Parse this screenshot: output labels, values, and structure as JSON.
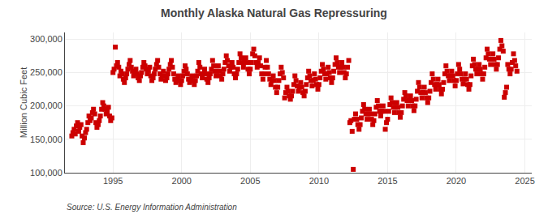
{
  "chart_data": {
    "type": "scatter",
    "title": "Monthly Alaska Natural Gas Repressuring",
    "ylabel": "Million Cubic Feet",
    "annotations": [
      "Source: U.S. Energy Information Administration"
    ],
    "color": "#cc0000",
    "marker": "square",
    "grid": true,
    "xlim": [
      1991.5,
      2025.5
    ],
    "xticks": [
      1995,
      2000,
      2005,
      2010,
      2015,
      2020,
      2025
    ],
    "ylim": [
      100000,
      310000
    ],
    "yticks": [
      {
        "value": 100000,
        "label": "100,000"
      },
      {
        "value": 150000,
        "label": "150,000"
      },
      {
        "value": 200000,
        "label": "200,000"
      },
      {
        "value": 250000,
        "label": "250,000"
      },
      {
        "value": 300000,
        "label": "300,000"
      }
    ],
    "x": [
      1992.0,
      1992.08,
      1992.17,
      1992.25,
      1992.33,
      1992.42,
      1992.5,
      1992.58,
      1992.67,
      1992.75,
      1992.83,
      1992.92,
      1993.0,
      1993.08,
      1993.17,
      1993.25,
      1993.33,
      1993.42,
      1993.5,
      1993.58,
      1993.67,
      1993.75,
      1993.83,
      1993.92,
      1994.0,
      1994.08,
      1994.17,
      1994.25,
      1994.33,
      1994.42,
      1994.5,
      1994.58,
      1994.67,
      1994.75,
      1994.83,
      1994.92,
      1995.0,
      1995.08,
      1995.17,
      1995.25,
      1995.33,
      1995.42,
      1995.5,
      1995.58,
      1995.67,
      1995.75,
      1995.83,
      1995.92,
      1996.0,
      1996.08,
      1996.17,
      1996.25,
      1996.33,
      1996.42,
      1996.5,
      1996.58,
      1996.67,
      1996.75,
      1996.83,
      1996.92,
      1997.0,
      1997.08,
      1997.17,
      1997.25,
      1997.33,
      1997.42,
      1997.5,
      1997.58,
      1997.67,
      1997.75,
      1997.83,
      1997.92,
      1998.0,
      1998.08,
      1998.17,
      1998.25,
      1998.33,
      1998.42,
      1998.5,
      1998.58,
      1998.67,
      1998.75,
      1998.83,
      1998.92,
      1999.0,
      1999.08,
      1999.17,
      1999.25,
      1999.33,
      1999.42,
      1999.5,
      1999.58,
      1999.67,
      1999.75,
      1999.83,
      1999.92,
      2000.0,
      2000.08,
      2000.17,
      2000.25,
      2000.33,
      2000.42,
      2000.5,
      2000.58,
      2000.67,
      2000.75,
      2000.83,
      2000.92,
      2001.0,
      2001.08,
      2001.17,
      2001.25,
      2001.33,
      2001.42,
      2001.5,
      2001.58,
      2001.67,
      2001.75,
      2001.83,
      2001.92,
      2002.0,
      2002.08,
      2002.17,
      2002.25,
      2002.33,
      2002.42,
      2002.5,
      2002.58,
      2002.67,
      2002.75,
      2002.83,
      2002.92,
      2003.0,
      2003.08,
      2003.17,
      2003.25,
      2003.33,
      2003.42,
      2003.5,
      2003.58,
      2003.67,
      2003.75,
      2003.83,
      2003.92,
      2004.0,
      2004.08,
      2004.17,
      2004.25,
      2004.33,
      2004.42,
      2004.5,
      2004.58,
      2004.67,
      2004.75,
      2004.83,
      2004.92,
      2005.0,
      2005.08,
      2005.17,
      2005.25,
      2005.33,
      2005.42,
      2005.5,
      2005.58,
      2005.67,
      2005.75,
      2005.83,
      2005.92,
      2006.0,
      2006.08,
      2006.17,
      2006.25,
      2006.33,
      2006.42,
      2006.5,
      2006.58,
      2006.67,
      2006.75,
      2006.83,
      2006.92,
      2007.0,
      2007.08,
      2007.17,
      2007.25,
      2007.33,
      2007.42,
      2007.5,
      2007.58,
      2007.67,
      2007.75,
      2007.83,
      2007.92,
      2008.0,
      2008.08,
      2008.17,
      2008.25,
      2008.33,
      2008.42,
      2008.5,
      2008.58,
      2008.67,
      2008.75,
      2008.83,
      2008.92,
      2009.0,
      2009.08,
      2009.17,
      2009.25,
      2009.33,
      2009.42,
      2009.5,
      2009.58,
      2009.67,
      2009.75,
      2009.83,
      2009.92,
      2010.0,
      2010.08,
      2010.17,
      2010.25,
      2010.33,
      2010.42,
      2010.5,
      2010.58,
      2010.67,
      2010.75,
      2010.83,
      2010.92,
      2011.0,
      2011.08,
      2011.17,
      2011.25,
      2011.33,
      2011.42,
      2011.5,
      2011.58,
      2011.67,
      2011.75,
      2011.83,
      2011.92,
      2012.0,
      2012.08,
      2012.17,
      2012.25,
      2012.33,
      2012.42,
      2012.5,
      2012.58,
      2012.67,
      2012.75,
      2012.83,
      2012.92,
      2013.0,
      2013.08,
      2013.17,
      2013.25,
      2013.33,
      2013.42,
      2013.5,
      2013.58,
      2013.67,
      2013.75,
      2013.83,
      2013.92,
      2014.0,
      2014.08,
      2014.17,
      2014.25,
      2014.33,
      2014.42,
      2014.5,
      2014.58,
      2014.67,
      2014.75,
      2014.83,
      2014.92,
      2015.0,
      2015.08,
      2015.17,
      2015.25,
      2015.33,
      2015.42,
      2015.5,
      2015.58,
      2015.67,
      2015.75,
      2015.83,
      2015.92,
      2016.0,
      2016.08,
      2016.17,
      2016.25,
      2016.33,
      2016.42,
      2016.5,
      2016.58,
      2016.67,
      2016.75,
      2016.83,
      2016.92,
      2017.0,
      2017.08,
      2017.17,
      2017.25,
      2017.33,
      2017.42,
      2017.5,
      2017.58,
      2017.67,
      2017.75,
      2017.83,
      2017.92,
      2018.0,
      2018.08,
      2018.17,
      2018.25,
      2018.33,
      2018.42,
      2018.5,
      2018.58,
      2018.67,
      2018.75,
      2018.83,
      2018.92,
      2019.0,
      2019.08,
      2019.17,
      2019.25,
      2019.33,
      2019.42,
      2019.5,
      2019.58,
      2019.67,
      2019.75,
      2019.83,
      2019.92,
      2020.0,
      2020.08,
      2020.17,
      2020.25,
      2020.33,
      2020.42,
      2020.5,
      2020.58,
      2020.67,
      2020.75,
      2020.83,
      2020.92,
      2021.0,
      2021.08,
      2021.17,
      2021.25,
      2021.33,
      2021.42,
      2021.5,
      2021.58,
      2021.67,
      2021.75,
      2021.83,
      2021.92,
      2022.0,
      2022.08,
      2022.17,
      2022.25,
      2022.33,
      2022.42,
      2022.5,
      2022.58,
      2022.67,
      2022.75,
      2022.83,
      2022.92,
      2023.0,
      2023.08,
      2023.17,
      2023.25,
      2023.33,
      2023.42,
      2023.5,
      2023.58,
      2023.67,
      2023.75,
      2023.83,
      2023.92,
      2024.0,
      2024.08,
      2024.17,
      2024.25,
      2024.33,
      2024.42
    ],
    "values": [
      155000,
      160000,
      165000,
      158000,
      170000,
      175000,
      162000,
      168000,
      172000,
      155000,
      145000,
      152000,
      160000,
      165000,
      175000,
      185000,
      178000,
      182000,
      190000,
      195000,
      188000,
      175000,
      168000,
      172000,
      178000,
      185000,
      195000,
      205000,
      200000,
      195000,
      188000,
      192000,
      198000,
      185000,
      178000,
      182000,
      250000,
      255000,
      288000,
      260000,
      265000,
      258000,
      245000,
      252000,
      248000,
      240000,
      235000,
      242000,
      248000,
      255000,
      262000,
      268000,
      258000,
      252000,
      245000,
      250000,
      255000,
      248000,
      242000,
      238000,
      245000,
      250000,
      258000,
      265000,
      260000,
      255000,
      248000,
      252000,
      258000,
      245000,
      238000,
      242000,
      248000,
      255000,
      262000,
      268000,
      258000,
      248000,
      240000,
      245000,
      252000,
      245000,
      238000,
      242000,
      248000,
      255000,
      262000,
      268000,
      258000,
      248000,
      240000,
      235000,
      240000,
      245000,
      238000,
      232000,
      238000,
      245000,
      252000,
      260000,
      255000,
      248000,
      240000,
      235000,
      240000,
      245000,
      238000,
      232000,
      238000,
      245000,
      252000,
      265000,
      258000,
      248000,
      242000,
      248000,
      255000,
      248000,
      240000,
      235000,
      242000,
      248000,
      255000,
      268000,
      260000,
      252000,
      245000,
      252000,
      260000,
      252000,
      245000,
      240000,
      248000,
      255000,
      265000,
      275000,
      268000,
      260000,
      252000,
      258000,
      265000,
      258000,
      248000,
      242000,
      248000,
      255000,
      265000,
      278000,
      272000,
      265000,
      258000,
      265000,
      272000,
      265000,
      255000,
      248000,
      255000,
      265000,
      278000,
      285000,
      275000,
      265000,
      258000,
      265000,
      272000,
      260000,
      248000,
      240000,
      248000,
      258000,
      268000,
      258000,
      248000,
      240000,
      232000,
      238000,
      245000,
      238000,
      228000,
      220000,
      228000,
      238000,
      248000,
      258000,
      250000,
      242000,
      212000,
      220000,
      228000,
      222000,
      215000,
      210000,
      215000,
      222000,
      232000,
      245000,
      238000,
      230000,
      222000,
      228000,
      235000,
      228000,
      220000,
      215000,
      222000,
      232000,
      242000,
      252000,
      245000,
      238000,
      230000,
      238000,
      248000,
      240000,
      232000,
      225000,
      232000,
      242000,
      252000,
      262000,
      255000,
      248000,
      240000,
      248000,
      258000,
      250000,
      242000,
      235000,
      242000,
      252000,
      262000,
      272000,
      265000,
      258000,
      250000,
      258000,
      265000,
      258000,
      250000,
      242000,
      248000,
      258000,
      268000,
      175000,
      178000,
      162000,
      105000,
      180000,
      188000,
      180000,
      172000,
      165000,
      172000,
      182000,
      192000,
      202000,
      195000,
      188000,
      180000,
      188000,
      195000,
      188000,
      180000,
      172000,
      178000,
      188000,
      198000,
      208000,
      200000,
      192000,
      185000,
      192000,
      200000,
      192000,
      165000,
      175000,
      180000,
      192000,
      202000,
      212000,
      205000,
      198000,
      190000,
      198000,
      205000,
      198000,
      190000,
      183000,
      190000,
      200000,
      210000,
      220000,
      215000,
      208000,
      200000,
      208000,
      215000,
      208000,
      200000,
      193000,
      200000,
      210000,
      222000,
      235000,
      228000,
      220000,
      212000,
      220000,
      228000,
      220000,
      212000,
      205000,
      212000,
      222000,
      235000,
      248000,
      240000,
      232000,
      225000,
      232000,
      240000,
      232000,
      225000,
      218000,
      225000,
      235000,
      248000,
      260000,
      252000,
      245000,
      238000,
      245000,
      252000,
      245000,
      238000,
      230000,
      238000,
      248000,
      262000,
      255000,
      248000,
      240000,
      233000,
      240000,
      248000,
      240000,
      232000,
      225000,
      232000,
      245000,
      260000,
      270000,
      262000,
      255000,
      248000,
      255000,
      262000,
      255000,
      248000,
      240000,
      248000,
      258000,
      272000,
      285000,
      278000,
      270000,
      262000,
      270000,
      278000,
      270000,
      262000,
      255000,
      262000,
      272000,
      285000,
      298000,
      290000,
      282000,
      213000,
      220000,
      228000,
      262000,
      255000,
      248000,
      255000,
      265000,
      278000,
      268000,
      260000,
      252000
    ]
  }
}
